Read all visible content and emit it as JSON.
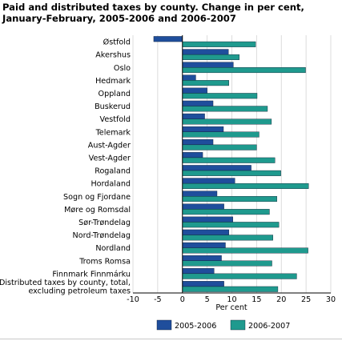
{
  "chart_data": {
    "type": "bar",
    "orientation": "horizontal",
    "title": "Paid and distributed taxes by county. Change in per cent, January-February, 2005-2006 and 2006-2007",
    "xlabel": "Per cent",
    "ylabel": "",
    "xlim": [
      -10,
      30
    ],
    "xticks": [
      -10,
      -5,
      0,
      5,
      10,
      15,
      20,
      25,
      30
    ],
    "grid": "vertical",
    "legend_position": "bottom",
    "categories": [
      "Østfold",
      "Akershus",
      "Oslo",
      "Hedmark",
      "Oppland",
      "Buskerud",
      "Vestfold",
      "Telemark",
      "Aust-Agder",
      "Vest-Agder",
      "Rogaland",
      "Hordaland",
      "Sogn og Fjordane",
      "Møre og Romsdal",
      "Sør-Trøndelag",
      "Nord-Trøndelag",
      "Nordland",
      "Troms Romsa",
      "Finnmark Finnmárku",
      [
        "Distributed taxes by county, total,",
        "excluding petroleum taxes"
      ]
    ],
    "series": [
      {
        "name": "2005-2006",
        "color": "#1f4e9c",
        "values": [
          -5.8,
          9.3,
          10.3,
          2.7,
          5.0,
          6.2,
          4.5,
          8.3,
          6.2,
          4.1,
          13.9,
          10.6,
          7.0,
          8.4,
          10.2,
          9.4,
          8.7,
          7.9,
          6.4,
          8.4
        ]
      },
      {
        "name": "2006-2007",
        "color": "#1f9a8e",
        "values": [
          14.8,
          11.5,
          24.9,
          9.4,
          15.1,
          17.2,
          18.0,
          15.5,
          15.0,
          18.7,
          19.9,
          25.5,
          19.1,
          17.6,
          19.5,
          18.3,
          25.4,
          18.1,
          23.1,
          19.3
        ]
      }
    ]
  }
}
